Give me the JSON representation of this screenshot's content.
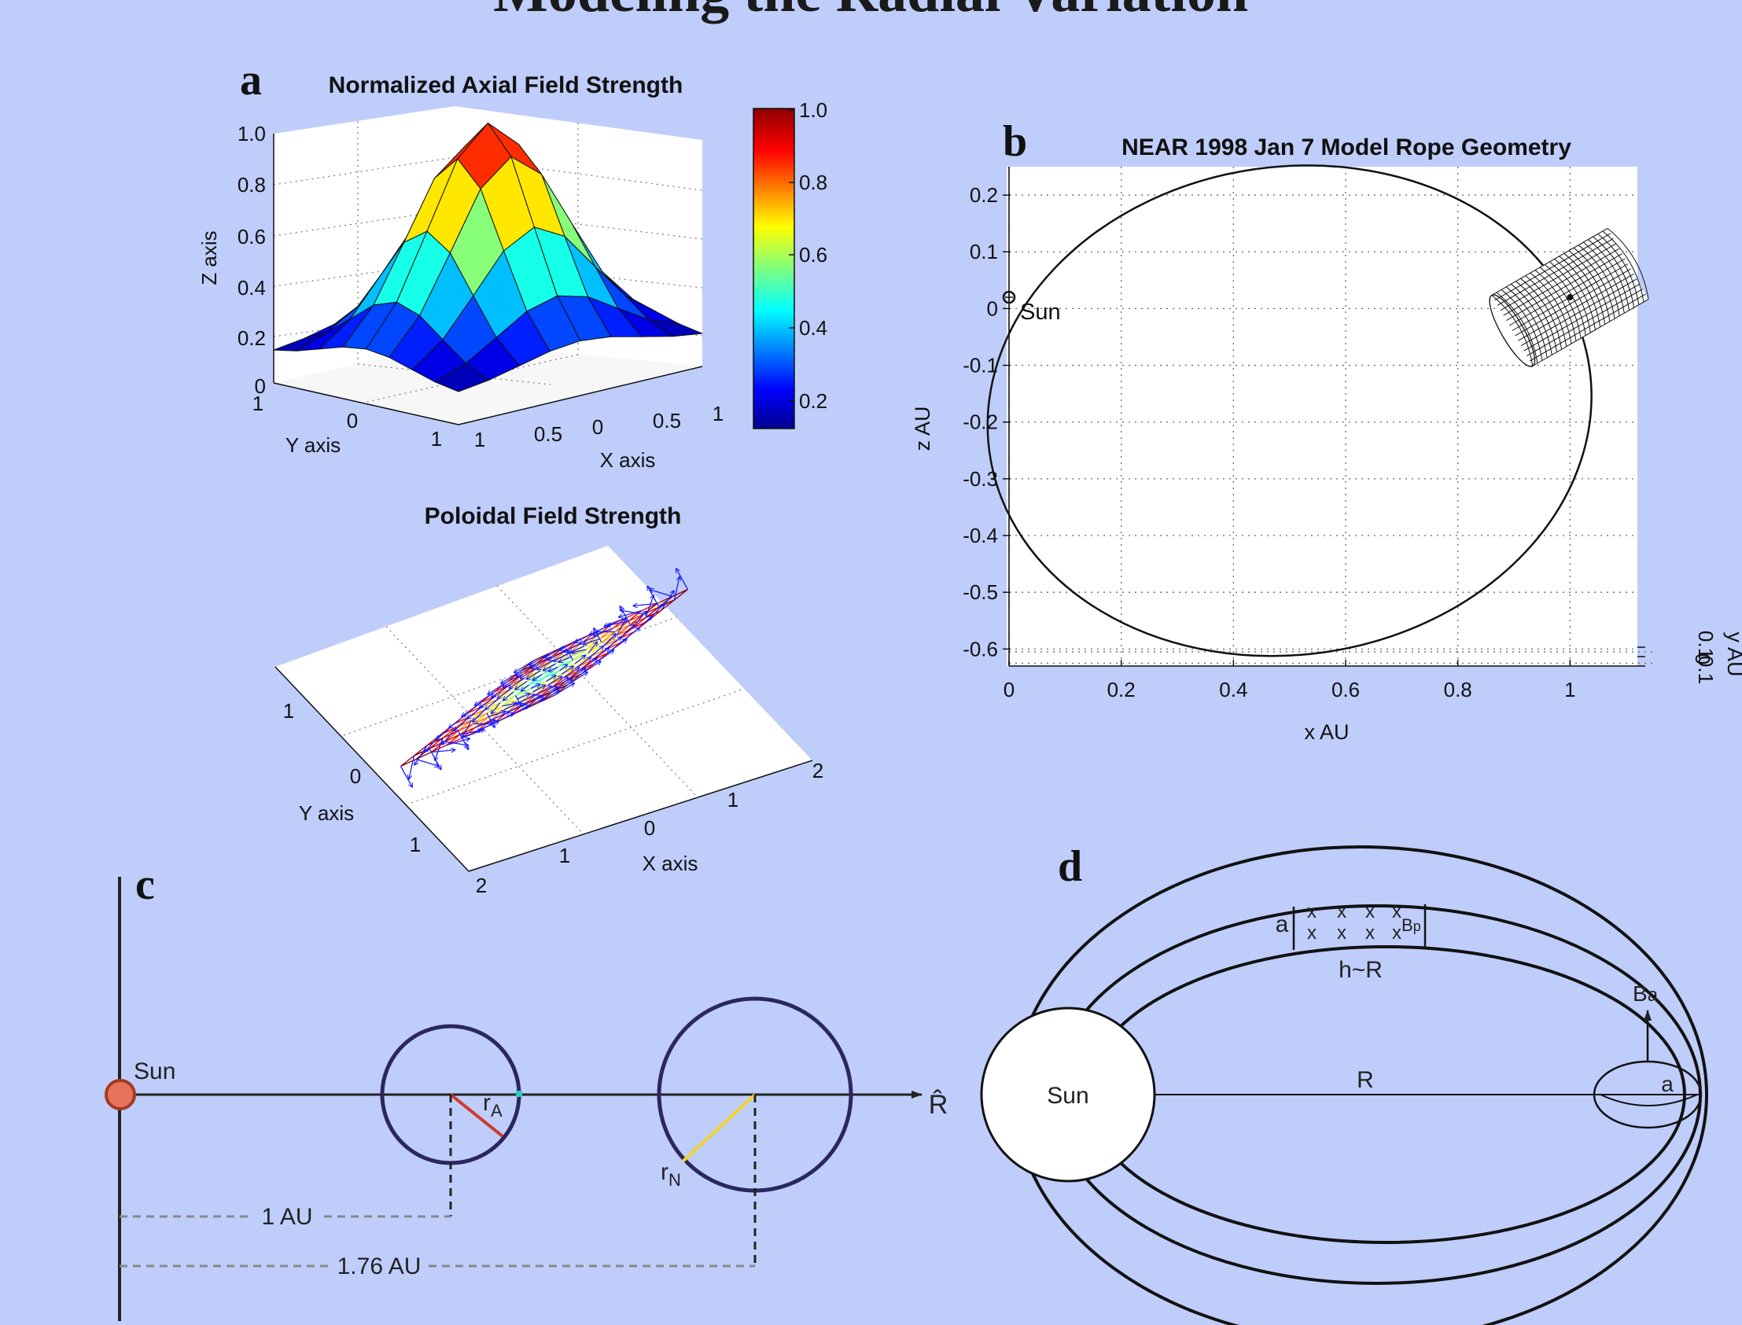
{
  "slide": {
    "title": "Modeling the Radial Variation"
  },
  "panel_a": {
    "letter": "a",
    "surface_title": "Normalized Axial Field Strength",
    "z_axis_label": "Z axis",
    "y_axis_label": "Y axis",
    "x_axis_label": "X axis",
    "z_ticks": [
      "1.0",
      "0.8",
      "0.6",
      "0.4",
      "0.2",
      "0"
    ],
    "y_ticks": [
      "1",
      "0",
      "1"
    ],
    "x_ticks": [
      "1",
      "0.5",
      "0",
      "0.5",
      "1"
    ],
    "colorbar_ticks": [
      "1.0",
      "0.8",
      "0.6",
      "0.4",
      "0.2"
    ],
    "quiver_title": "Poloidal Field Strength",
    "quiver_y_axis_label": "Y axis",
    "quiver_x_axis_label": "X axis",
    "quiver_y_ticks": [
      "1",
      "0",
      "1"
    ],
    "quiver_x_ticks_front": [
      "2",
      "1",
      "0"
    ],
    "quiver_x_ticks_right": [
      "1",
      "2"
    ]
  },
  "chart_data": {
    "type": "line",
    "title": "NEAR 1998 Jan 7 Model Rope Geometry",
    "xlabel": "x AU",
    "ylabel": "z AU",
    "zlabel": "y AU",
    "xlim": [
      0,
      1.12
    ],
    "ylim": [
      -0.63,
      0.25
    ],
    "x_ticks": [
      "0",
      "0.2",
      "0.4",
      "0.6",
      "0.8",
      "1"
    ],
    "y_ticks": [
      "0.2",
      "0.1",
      "0",
      "-0.1",
      "-0.2",
      "-0.3",
      "-0.4",
      "-0.5",
      "-0.6"
    ],
    "z_ticks": [
      "0.1",
      "0",
      "0.1"
    ],
    "grid": true,
    "sun_label": "Sun",
    "sun_position": [
      0,
      0.02
    ],
    "loop": {
      "center": [
        0.5,
        -0.18
      ],
      "x_radius": 0.54,
      "z_radius": 0.43,
      "through_points": [
        [
          0,
          0.02
        ],
        [
          0.5,
          0.25
        ],
        [
          1.07,
          -0.22
        ],
        [
          0.63,
          -0.59
        ]
      ]
    },
    "flux_rope": {
      "center": [
        1.0,
        0.02
      ],
      "depicted": "mesh cylinder"
    }
  },
  "panel_b": {
    "letter": "b"
  },
  "panel_c": {
    "letter": "c",
    "sun_label": "Sun",
    "axis_label": "R̂",
    "r_a_label": "r",
    "r_a_sub": "A",
    "r_n_label": "r",
    "r_n_sub": "N",
    "dist_1": "1 AU",
    "dist_2": "1.76 AU",
    "colors": {
      "sun": "#e8735a",
      "circle": "#2b2660",
      "r_a": "#d03a2a",
      "r_n": "#f2d22e",
      "marker": "#2ec8c8"
    }
  },
  "panel_d": {
    "letter": "d",
    "sun_label": "Sun",
    "r_label": "R",
    "a_label": "a",
    "a_label_right": "a",
    "h_label": "h~R",
    "bp_label": "B",
    "bp_sub": "p",
    "ba_label": "B",
    "ba_sub": "a",
    "x_mark": "x"
  }
}
